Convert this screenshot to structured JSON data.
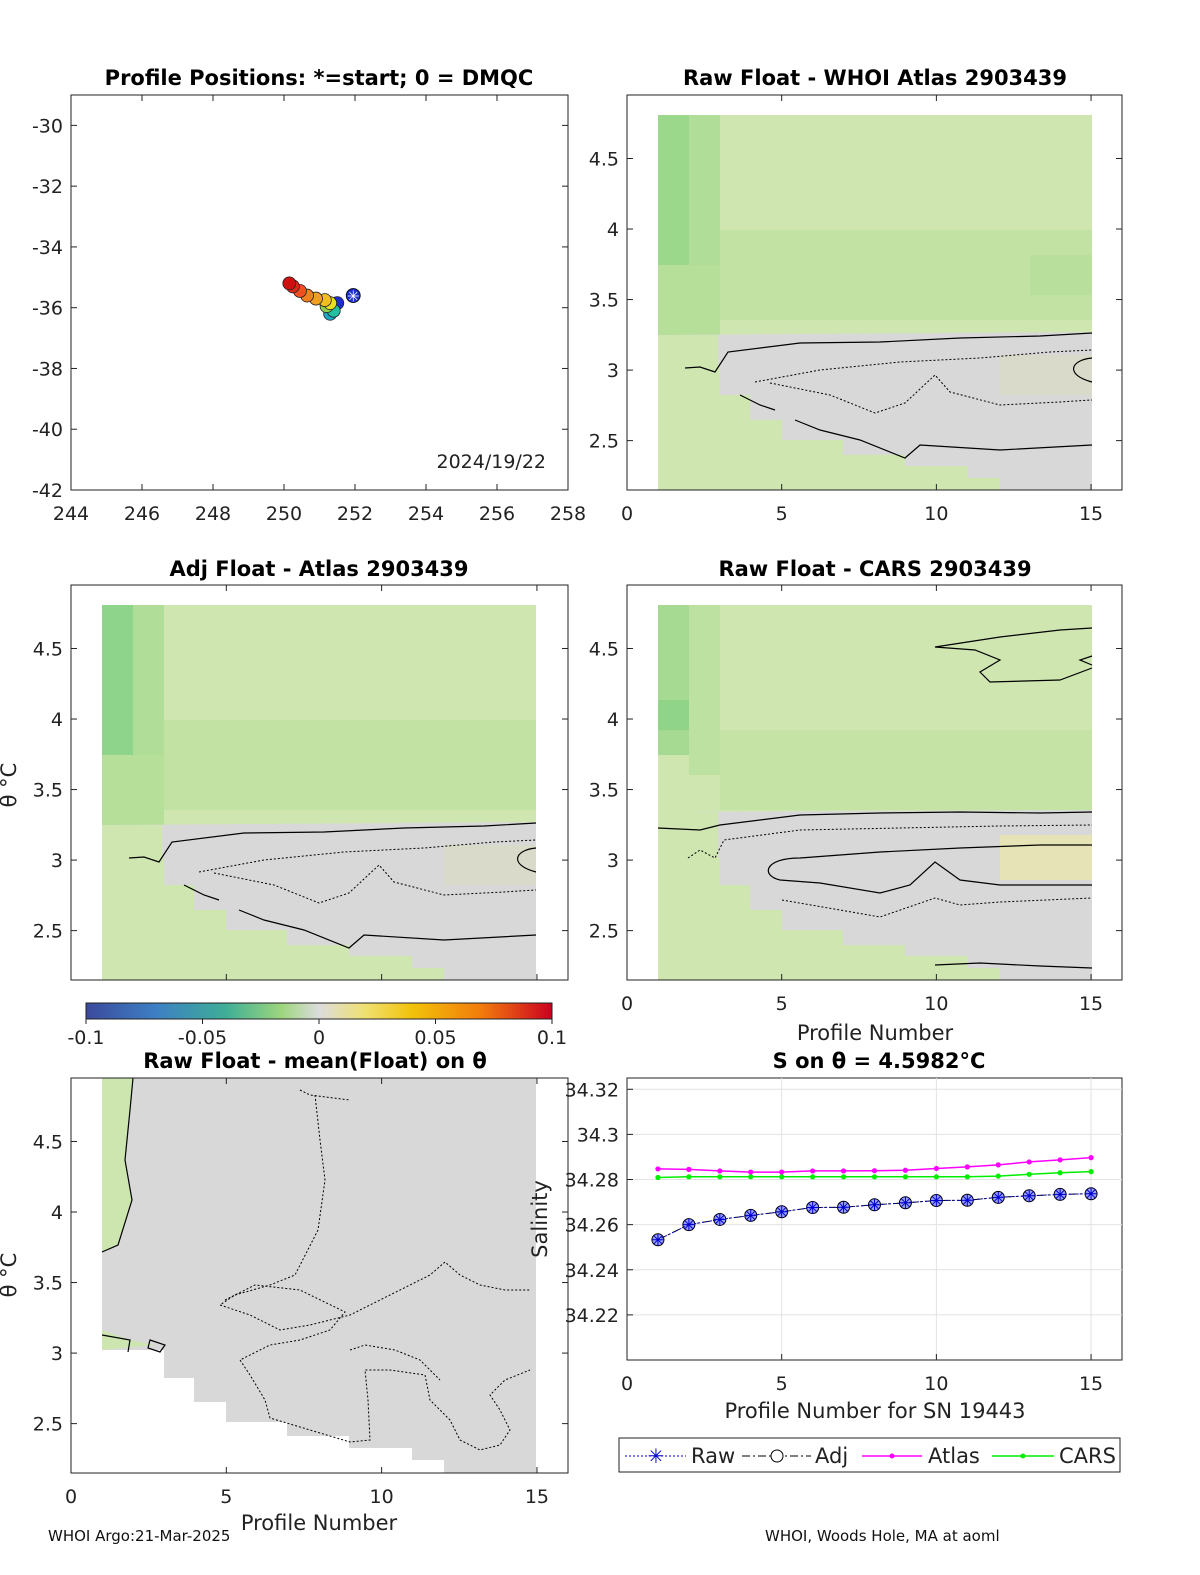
{
  "footer": {
    "left": "WHOI Argo:21-Mar-2025",
    "right": "WHOI, Woods Hole, MA at aoml"
  },
  "colors": {
    "green_light": "#d2e6b3",
    "green_mid": "#b6df9a",
    "green_dark": "#8ed48a",
    "grey": "#d8d8d8",
    "yellow": "#ece8b0",
    "atlas": "#ff00ff",
    "cars": "#00ee00",
    "raw_adj": "#0000cc"
  },
  "chart_data": [
    {
      "id": "positions",
      "type": "scatter",
      "title": "Profile Positions: *=start; 0 = DMQC",
      "xlim": [
        244,
        258
      ],
      "ylim": [
        -42,
        -29
      ],
      "xticks": [
        244,
        246,
        248,
        250,
        252,
        254,
        256,
        258
      ],
      "yticks": [
        -42,
        -40,
        -38,
        -36,
        -34,
        -32,
        -30
      ],
      "annotation": "2024/19/22",
      "start": {
        "x": 251.95,
        "y": -35.6
      },
      "points": [
        {
          "x": 251.5,
          "y": -35.85,
          "c": "#1e2fd0"
        },
        {
          "x": 251.3,
          "y": -36.2,
          "c": "#20a8c8"
        },
        {
          "x": 251.4,
          "y": -36.1,
          "c": "#22c0a0"
        },
        {
          "x": 251.2,
          "y": -35.95,
          "c": "#8ed050"
        },
        {
          "x": 251.3,
          "y": -35.85,
          "c": "#e8e020"
        },
        {
          "x": 251.15,
          "y": -35.75,
          "c": "#f0c020"
        },
        {
          "x": 250.9,
          "y": -35.7,
          "c": "#f0a020"
        },
        {
          "x": 250.65,
          "y": -35.6,
          "c": "#f08020"
        },
        {
          "x": 250.45,
          "y": -35.45,
          "c": "#f05020"
        },
        {
          "x": 250.25,
          "y": -35.3,
          "c": "#e02818"
        },
        {
          "x": 250.15,
          "y": -35.2,
          "c": "#d01010"
        }
      ]
    },
    {
      "id": "raw-atlas",
      "type": "heatmap",
      "title": "Raw Float - WHOI Atlas  2903439",
      "xlim": [
        0,
        16
      ],
      "ylim": [
        2.15,
        4.95
      ],
      "xticks": [
        0,
        5,
        10,
        15
      ],
      "yticks": [
        2.5,
        3,
        3.5,
        4,
        4.5
      ]
    },
    {
      "id": "adj-atlas",
      "type": "heatmap",
      "title": "Adj Float - Atlas  2903439",
      "ylabel": "θ °C",
      "xlim": [
        0,
        16
      ],
      "ylim": [
        2.15,
        4.95
      ],
      "xticks": [],
      "yticks": [
        2.5,
        3,
        3.5,
        4,
        4.5
      ]
    },
    {
      "id": "raw-cars",
      "type": "heatmap",
      "title": "Raw Float - CARS  2903439",
      "xlabel": "Profile Number",
      "xlim": [
        0,
        16
      ],
      "ylim": [
        2.15,
        4.95
      ],
      "xticks": [
        0,
        5,
        10,
        15
      ],
      "yticks": [
        2.5,
        3,
        3.5,
        4,
        4.5
      ]
    },
    {
      "id": "colorbar",
      "type": "heatmap",
      "range": [
        -0.1,
        0.1
      ],
      "ticks": [
        "-0.1",
        "-0.05",
        "0",
        "0.05",
        "0.1"
      ]
    },
    {
      "id": "raw-mean",
      "type": "heatmap",
      "title": "Raw Float - mean(Float) on θ",
      "xlabel": "Profile Number",
      "ylabel": "θ °C",
      "xlim": [
        0,
        16
      ],
      "ylim": [
        2.15,
        4.95
      ],
      "xticks": [
        0,
        5,
        10,
        15
      ],
      "yticks": [
        2.5,
        3,
        3.5,
        4,
        4.5
      ]
    },
    {
      "id": "salinity",
      "type": "line",
      "title": "S on θ = 4.5982°C",
      "xlabel": "Profile Number for SN 19443",
      "ylabel": "Salinity",
      "xlim": [
        0,
        16
      ],
      "ylim": [
        34.2,
        34.325
      ],
      "grid": true,
      "legend_position": "bottom",
      "xticks": [
        0,
        5,
        10,
        15
      ],
      "yticks": [
        34.22,
        34.24,
        34.26,
        34.28,
        34.3,
        34.32
      ],
      "x": [
        1,
        2,
        3,
        4,
        5,
        6,
        7,
        8,
        9,
        10,
        11,
        12,
        13,
        14,
        15
      ],
      "series": [
        {
          "name": "Raw",
          "values": [
            34.2533,
            34.26,
            34.2623,
            34.2641,
            34.2657,
            34.2676,
            34.2677,
            34.2688,
            34.2697,
            34.2707,
            34.2708,
            34.2721,
            34.2728,
            34.2734,
            34.2737
          ]
        },
        {
          "name": "Adj",
          "values": [
            34.2533,
            34.26,
            34.2623,
            34.2641,
            34.2657,
            34.2676,
            34.2677,
            34.2688,
            34.2697,
            34.2707,
            34.2708,
            34.2721,
            34.2728,
            34.2734,
            34.2737
          ]
        },
        {
          "name": "Atlas",
          "values": [
            34.2847,
            34.2845,
            34.2838,
            34.2833,
            34.2833,
            34.2838,
            34.2838,
            34.2839,
            34.2841,
            34.2849,
            34.2856,
            34.2865,
            34.2878,
            34.2887,
            34.2897
          ]
        },
        {
          "name": "CARS",
          "values": [
            34.2809,
            34.2812,
            34.2812,
            34.2812,
            34.2812,
            34.2812,
            34.2812,
            34.2812,
            34.2812,
            34.2812,
            34.2812,
            34.2815,
            34.2823,
            34.283,
            34.2835
          ]
        }
      ]
    }
  ]
}
